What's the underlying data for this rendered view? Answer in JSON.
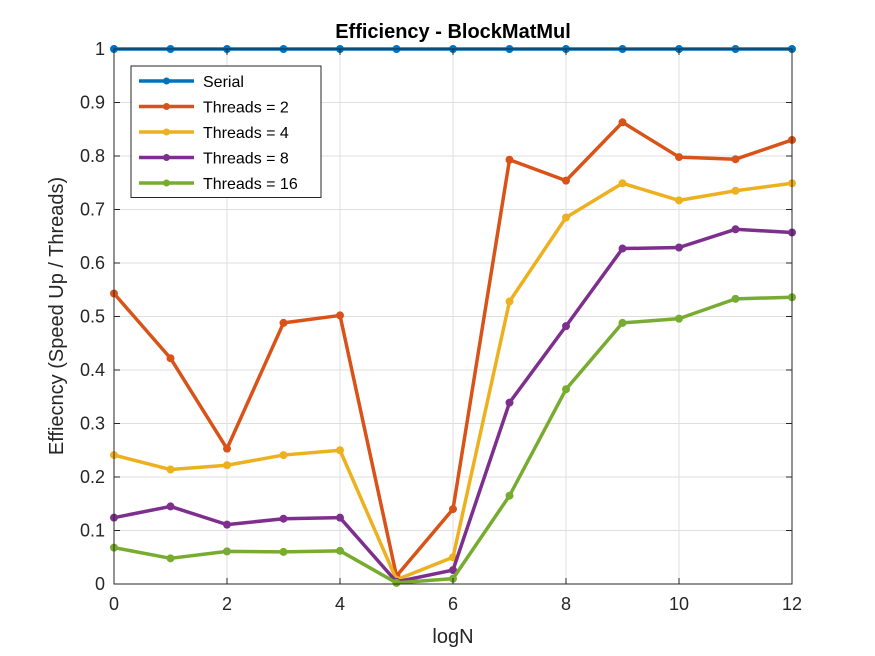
{
  "chart_data": {
    "type": "line",
    "title": "Efficiency - BlockMatMul",
    "xlabel": "logN",
    "ylabel": "Effiecncy (Speed Up / Threads)",
    "xlim": [
      0,
      12
    ],
    "ylim": [
      0,
      1
    ],
    "xticks": [
      0,
      2,
      4,
      6,
      8,
      10,
      12
    ],
    "xtick_labels": [
      "0",
      "2",
      "4",
      "6",
      "8",
      "10",
      "12"
    ],
    "yticks": [
      0,
      0.1,
      0.2,
      0.3,
      0.4,
      0.5,
      0.6,
      0.7,
      0.8,
      0.9,
      1
    ],
    "ytick_labels": [
      "0",
      "0.1",
      "0.2",
      "0.3",
      "0.4",
      "0.5",
      "0.6",
      "0.7",
      "0.8",
      "0.9",
      "1"
    ],
    "grid": true,
    "legend_position": "top-left",
    "x": [
      0,
      1,
      2,
      3,
      4,
      5,
      6,
      7,
      8,
      9,
      10,
      11,
      12
    ],
    "series": [
      {
        "name": "Serial",
        "color": "#0072BD",
        "values": [
          1,
          1,
          1,
          1,
          1,
          1,
          1,
          1,
          1,
          1,
          1,
          1,
          1
        ]
      },
      {
        "name": "Threads = 2",
        "color": "#D95319",
        "values": [
          0.543,
          0.422,
          0.253,
          0.488,
          0.502,
          0.015,
          0.14,
          0.793,
          0.754,
          0.863,
          0.798,
          0.794,
          0.83
        ]
      },
      {
        "name": "Threads = 4",
        "color": "#EDB120",
        "values": [
          0.241,
          0.214,
          0.222,
          0.241,
          0.25,
          0.008,
          0.05,
          0.528,
          0.685,
          0.749,
          0.717,
          0.735,
          0.749
        ]
      },
      {
        "name": "Threads = 8",
        "color": "#7E2F8E",
        "values": [
          0.124,
          0.145,
          0.111,
          0.122,
          0.124,
          0.004,
          0.026,
          0.339,
          0.482,
          0.627,
          0.629,
          0.663,
          0.657
        ]
      },
      {
        "name": "Threads = 16",
        "color": "#77AC30",
        "values": [
          0.068,
          0.048,
          0.061,
          0.06,
          0.062,
          0.002,
          0.01,
          0.165,
          0.364,
          0.488,
          0.496,
          0.533,
          0.536
        ]
      }
    ]
  }
}
